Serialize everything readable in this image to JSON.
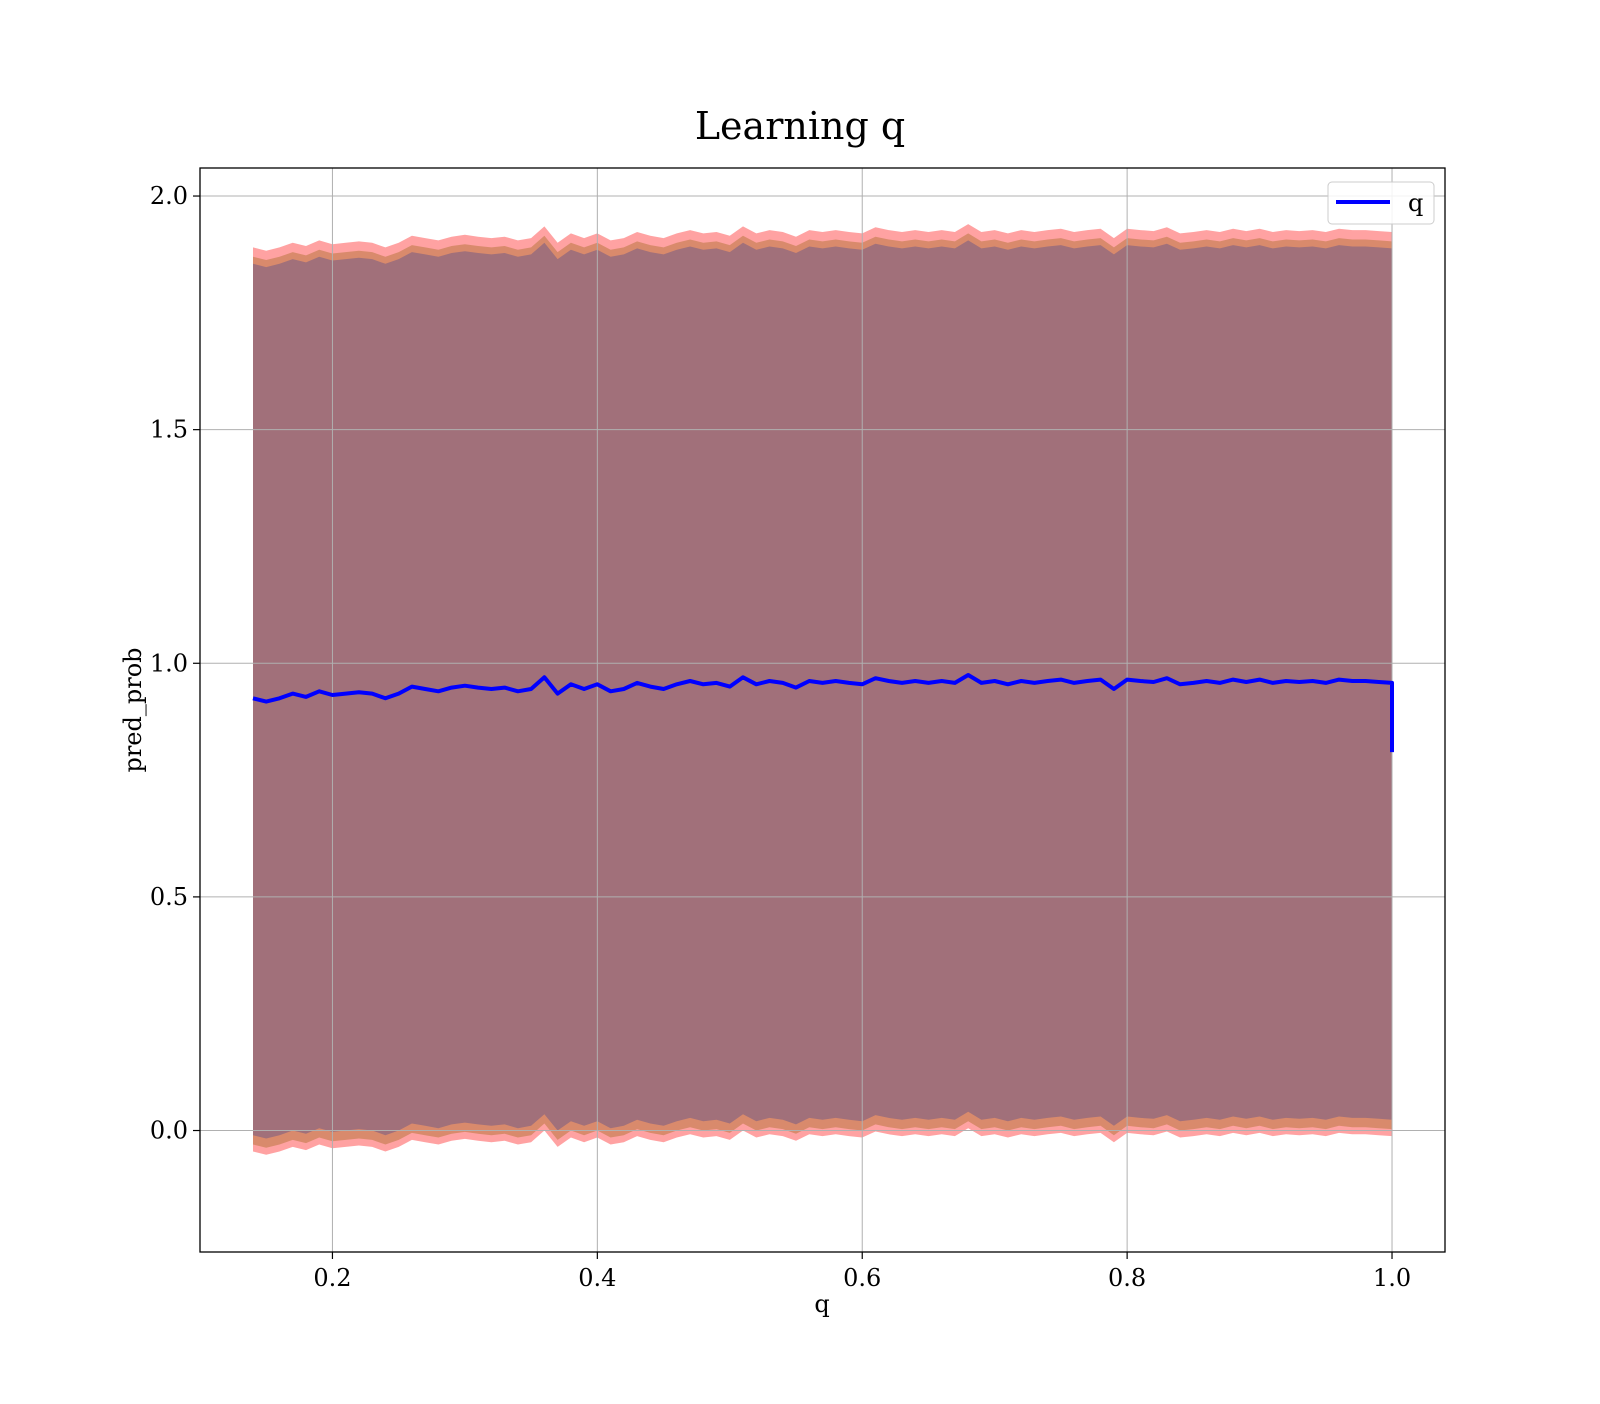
{
  "chart_data": {
    "type": "line",
    "title": "Learning q",
    "xlabel": "q",
    "ylabel": "pred_prob",
    "xlim": [
      0.1,
      1.04
    ],
    "ylim": [
      -0.26,
      2.06
    ],
    "xticks": [
      0.2,
      0.4,
      0.6,
      0.8,
      1.0
    ],
    "xtick_labels": [
      "0.2",
      "0.4",
      "0.6",
      "0.8",
      "1.0"
    ],
    "yticks": [
      0.0,
      0.5,
      1.0,
      1.5,
      2.0
    ],
    "ytick_labels": [
      "0.0",
      "0.5",
      "1.0",
      "1.5",
      "2.0"
    ],
    "grid": true,
    "legend_position": "top-right",
    "series": [
      {
        "name": "q",
        "color": "#0000ff",
        "x": [
          0.14,
          0.15,
          0.16,
          0.17,
          0.18,
          0.19,
          0.2,
          0.21,
          0.22,
          0.23,
          0.24,
          0.25,
          0.26,
          0.27,
          0.28,
          0.29,
          0.3,
          0.31,
          0.32,
          0.33,
          0.34,
          0.35,
          0.36,
          0.37,
          0.38,
          0.39,
          0.4,
          0.41,
          0.42,
          0.43,
          0.44,
          0.45,
          0.46,
          0.47,
          0.48,
          0.49,
          0.5,
          0.51,
          0.52,
          0.53,
          0.54,
          0.55,
          0.56,
          0.57,
          0.58,
          0.59,
          0.6,
          0.61,
          0.62,
          0.63,
          0.64,
          0.65,
          0.66,
          0.67,
          0.68,
          0.69,
          0.7,
          0.71,
          0.72,
          0.73,
          0.74,
          0.75,
          0.76,
          0.77,
          0.78,
          0.79,
          0.8,
          0.81,
          0.82,
          0.83,
          0.84,
          0.85,
          0.86,
          0.87,
          0.88,
          0.89,
          0.9,
          0.91,
          0.92,
          0.93,
          0.94,
          0.95,
          0.96,
          0.97,
          0.98,
          0.99,
          1.0,
          1.0
        ],
        "y": [
          0.925,
          0.918,
          0.925,
          0.935,
          0.928,
          0.94,
          0.932,
          0.935,
          0.938,
          0.935,
          0.925,
          0.935,
          0.95,
          0.945,
          0.94,
          0.948,
          0.952,
          0.948,
          0.945,
          0.948,
          0.94,
          0.945,
          0.97,
          0.935,
          0.955,
          0.945,
          0.955,
          0.94,
          0.945,
          0.958,
          0.95,
          0.945,
          0.955,
          0.962,
          0.955,
          0.958,
          0.95,
          0.97,
          0.955,
          0.962,
          0.958,
          0.948,
          0.962,
          0.958,
          0.962,
          0.958,
          0.955,
          0.968,
          0.962,
          0.958,
          0.962,
          0.958,
          0.962,
          0.958,
          0.975,
          0.958,
          0.962,
          0.955,
          0.962,
          0.958,
          0.962,
          0.965,
          0.958,
          0.962,
          0.965,
          0.945,
          0.965,
          0.962,
          0.96,
          0.968,
          0.955,
          0.958,
          0.962,
          0.958,
          0.965,
          0.96,
          0.965,
          0.958,
          0.962,
          0.96,
          0.962,
          0.958,
          0.965,
          0.962,
          0.962,
          0.96,
          0.958,
          0.81
        ]
      }
    ],
    "bands": [
      {
        "color": "#ff5555",
        "opacity": 0.55,
        "lower_offset": -0.97,
        "upper_offset": 0.965
      },
      {
        "color": "#c98055",
        "opacity": 0.7,
        "lower_offset": -0.955,
        "upper_offset": 0.945
      },
      {
        "color": "#a1707a",
        "opacity": 1.0,
        "lower_offset": -0.935,
        "upper_offset": 0.93
      }
    ]
  }
}
